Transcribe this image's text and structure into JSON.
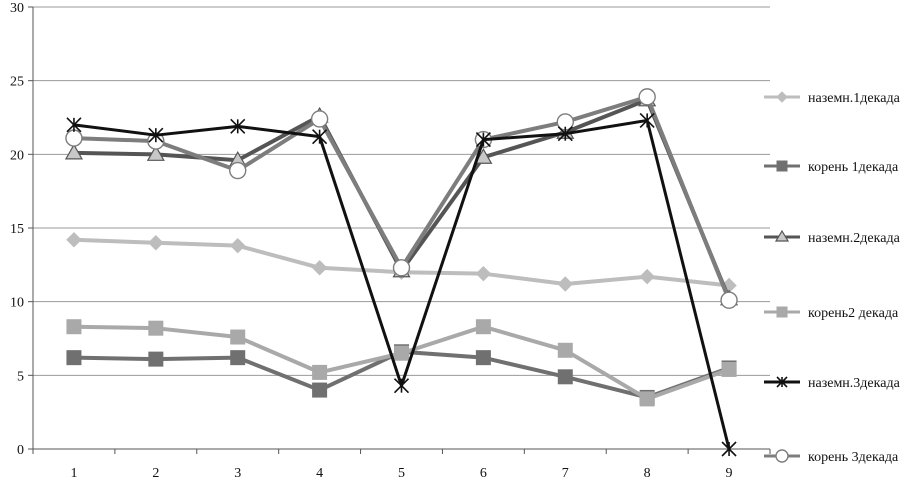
{
  "chart_data": {
    "type": "line",
    "categories": [
      "1",
      "2",
      "3",
      "4",
      "5",
      "6",
      "7",
      "8",
      "9"
    ],
    "ylim": [
      0,
      30
    ],
    "yticks": [
      0,
      5,
      10,
      15,
      20,
      25,
      30
    ],
    "grid": true,
    "legend_position": "right",
    "series": [
      {
        "name": "наземн.1декада",
        "color": "#bdbdbd",
        "marker": "diamond",
        "values": [
          14.2,
          14.0,
          13.8,
          12.3,
          12.0,
          11.9,
          11.2,
          11.7,
          11.1
        ]
      },
      {
        "name": "корень 1декада",
        "color": "#707070",
        "marker": "square",
        "values": [
          6.2,
          6.1,
          6.2,
          4.0,
          6.6,
          6.2,
          4.9,
          3.5,
          5.5
        ]
      },
      {
        "name": "наземн.2декада",
        "color": "#555555",
        "marker": "triangle",
        "values": [
          20.1,
          20.0,
          19.6,
          22.6,
          12.1,
          19.8,
          21.5,
          23.7,
          10.2
        ]
      },
      {
        "name": "корень2 декада",
        "color": "#a9a9a9",
        "marker": "square",
        "values": [
          8.3,
          8.2,
          7.6,
          5.2,
          6.5,
          8.3,
          6.7,
          3.4,
          5.4
        ]
      },
      {
        "name": "наземн.3декада",
        "color": "#111111",
        "marker": "asterisk",
        "values": [
          22.0,
          21.3,
          21.9,
          21.2,
          4.3,
          21.0,
          21.4,
          22.3,
          0.0
        ]
      },
      {
        "name": "корень 3декада",
        "color": "#7d7d7d",
        "marker": "circle",
        "values": [
          21.1,
          20.9,
          18.9,
          22.4,
          12.3,
          21.0,
          22.2,
          23.9,
          10.1
        ]
      }
    ]
  }
}
